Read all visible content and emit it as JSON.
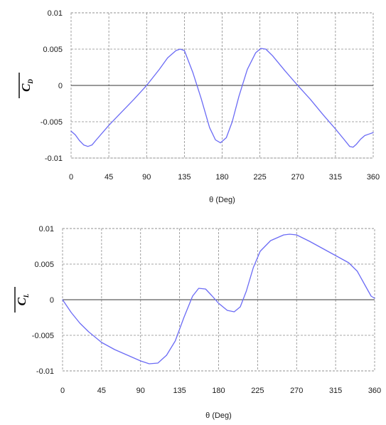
{
  "colors": {
    "line": "#6b6bf5",
    "grid": "#8a8a8a",
    "axis": "#333333"
  },
  "chart_data": [
    {
      "type": "line",
      "xlabel": "θ (Deg)",
      "ylabel": "C",
      "ylabel_sub": "D",
      "xlim": [
        0,
        360
      ],
      "ylim": [
        -0.01,
        0.01
      ],
      "xticks": [
        0,
        45,
        90,
        135,
        180,
        225,
        270,
        315,
        360
      ],
      "xtick_labels": [
        "0",
        "45",
        "90",
        "135",
        "180",
        "225",
        "270",
        "315",
        "360"
      ],
      "yticks": [
        0.01,
        0.005,
        0,
        -0.005,
        -0.01
      ],
      "ytick_labels": [
        "0.01",
        "0.005",
        "0",
        "-0.005",
        "-0.01"
      ],
      "grid": true,
      "series": [
        {
          "x": [
            0,
            5,
            10,
            15,
            20,
            25,
            30,
            45,
            60,
            75,
            90,
            105,
            115,
            125,
            130,
            135,
            145,
            155,
            165,
            172,
            178,
            185,
            192,
            200,
            210,
            220,
            226,
            232,
            240,
            255,
            270,
            285,
            300,
            315,
            325,
            332,
            336,
            340,
            345,
            350,
            355,
            360
          ],
          "y": [
            -0.0063,
            -0.0068,
            -0.0076,
            -0.0082,
            -0.0084,
            -0.0082,
            -0.0075,
            -0.0055,
            -0.0037,
            -0.0019,
            0.0,
            0.0022,
            0.0038,
            0.0048,
            0.005,
            0.0048,
            0.0018,
            -0.0018,
            -0.0058,
            -0.0075,
            -0.0079,
            -0.0072,
            -0.005,
            -0.0015,
            0.0022,
            0.0045,
            0.0051,
            0.005,
            0.0041,
            0.002,
            0.0,
            -0.0019,
            -0.004,
            -0.006,
            -0.0074,
            -0.0084,
            -0.0085,
            -0.0081,
            -0.0074,
            -0.0069,
            -0.0067,
            -0.0065
          ]
        }
      ]
    },
    {
      "type": "line",
      "xlabel": "θ (Deg)",
      "ylabel": "C",
      "ylabel_sub": "L",
      "xlim": [
        0,
        360
      ],
      "ylim": [
        -0.01,
        0.01
      ],
      "xticks": [
        0,
        45,
        90,
        135,
        180,
        225,
        270,
        315,
        360
      ],
      "xtick_labels": [
        "0",
        "45",
        "90",
        "135",
        "180",
        "225",
        "270",
        "315",
        "360"
      ],
      "yticks": [
        0.01,
        0.005,
        0,
        -0.005,
        -0.01
      ],
      "ytick_labels": [
        "0.01",
        "0.005",
        "0",
        "-0.005",
        "-0.01"
      ],
      "grid": true,
      "series": [
        {
          "x": [
            0,
            10,
            20,
            30,
            45,
            60,
            75,
            90,
            100,
            110,
            120,
            130,
            140,
            150,
            157,
            165,
            172,
            180,
            190,
            198,
            205,
            212,
            220,
            228,
            240,
            255,
            262,
            270,
            285,
            300,
            315,
            330,
            340,
            350,
            356,
            360
          ],
          "y": [
            0.0,
            -0.0018,
            -0.0033,
            -0.0045,
            -0.006,
            -0.007,
            -0.0078,
            -0.0086,
            -0.009,
            -0.0089,
            -0.0078,
            -0.0058,
            -0.0025,
            0.0005,
            0.0016,
            0.0015,
            0.0006,
            -0.0005,
            -0.0015,
            -0.0017,
            -0.001,
            0.0012,
            0.0045,
            0.0068,
            0.0083,
            0.0091,
            0.0092,
            0.0091,
            0.0082,
            0.0072,
            0.0062,
            0.0052,
            0.004,
            0.0018,
            0.0005,
            0.0002
          ]
        }
      ]
    }
  ]
}
